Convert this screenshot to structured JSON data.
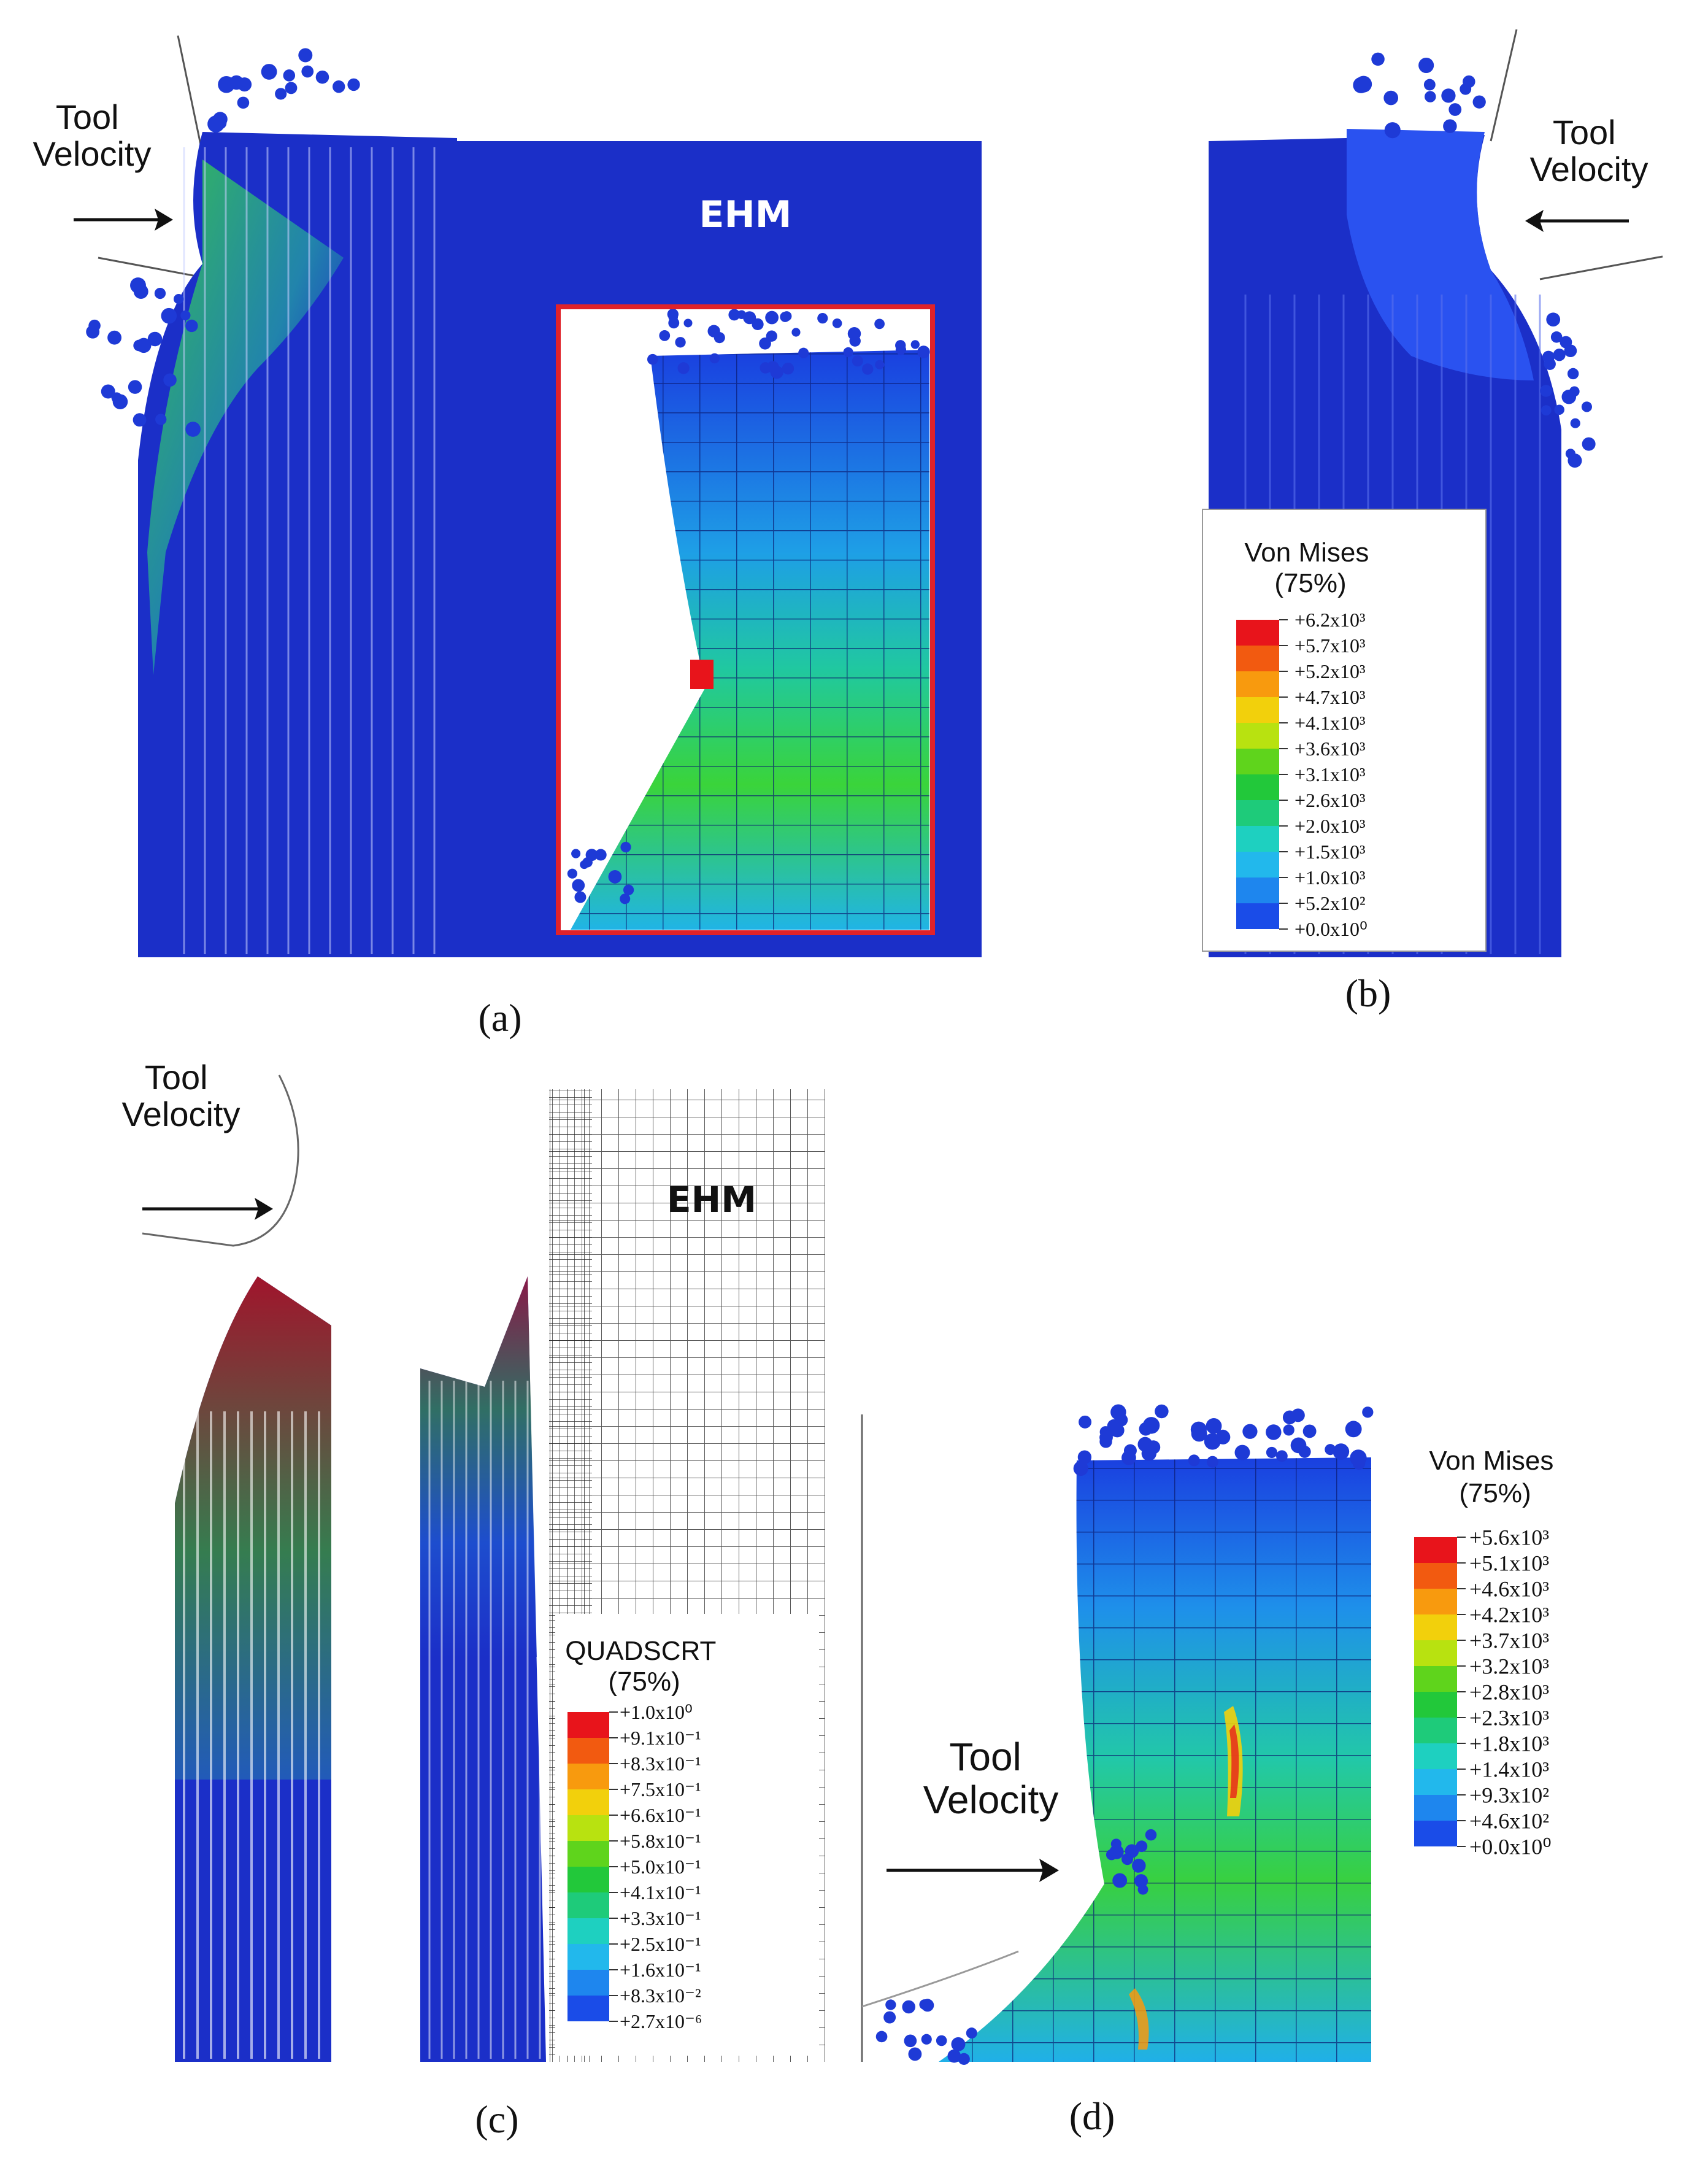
{
  "panels": {
    "a": {
      "caption": "(a)",
      "tool_label": [
        "Tool",
        "Velocity"
      ],
      "region_label": "EHM"
    },
    "b": {
      "caption": "(b)",
      "tool_label": [
        "Tool",
        "Velocity"
      ]
    },
    "c": {
      "caption": "(c)",
      "tool_label": [
        "Tool",
        "Velocity"
      ],
      "region_label": "EHM"
    },
    "d": {
      "caption": "(d)",
      "tool_label": [
        "Tool",
        "Velocity"
      ]
    }
  },
  "legends": {
    "b": {
      "title": [
        "Von Mises",
        "(75%)"
      ],
      "values": [
        "+6.2x10³",
        "+5.7x10³",
        "+5.2x10³",
        "+4.7x10³",
        "+4.1x10³",
        "+3.6x10³",
        "+3.1x10³",
        "+2.6x10³",
        "+2.0x10³",
        "+1.5x10³",
        "+1.0x10³",
        "+5.2x10²",
        "+0.0x10⁰"
      ]
    },
    "c": {
      "title": [
        "QUADSCRT",
        "(75%)"
      ],
      "values": [
        "+1.0x10⁰",
        "+9.1x10⁻¹",
        "+8.3x10⁻¹",
        "+7.5x10⁻¹",
        "+6.6x10⁻¹",
        "+5.8x10⁻¹",
        "+5.0x10⁻¹",
        "+4.1x10⁻¹",
        "+3.3x10⁻¹",
        "+2.5x10⁻¹",
        "+1.6x10⁻¹",
        "+8.3x10⁻²",
        "+2.7x10⁻⁶"
      ]
    },
    "d": {
      "title": [
        "Von Mises",
        "(75%)"
      ],
      "values": [
        "+5.6x10³",
        "+5.1x10³",
        "+4.6x10³",
        "+4.2x10³",
        "+3.7x10³",
        "+3.2x10³",
        "+2.8x10³",
        "+2.3x10³",
        "+1.8x10³",
        "+1.4x10³",
        "+9.3x10²",
        "+4.6x10²",
        "+0.0x10⁰"
      ]
    }
  },
  "colors": {
    "scale": [
      "#e8141b",
      "#f25a10",
      "#f89a0e",
      "#f2d00c",
      "#b8e210",
      "#5fd41c",
      "#22c83a",
      "#1ecb7a",
      "#1ed0c0",
      "#22b8ec",
      "#1e86ee",
      "#1a4ce8",
      "#0f1ee0"
    ],
    "workpiece": "#1b2fc8",
    "particle": "#1e3ad6",
    "inset_border": "#e0222a"
  }
}
